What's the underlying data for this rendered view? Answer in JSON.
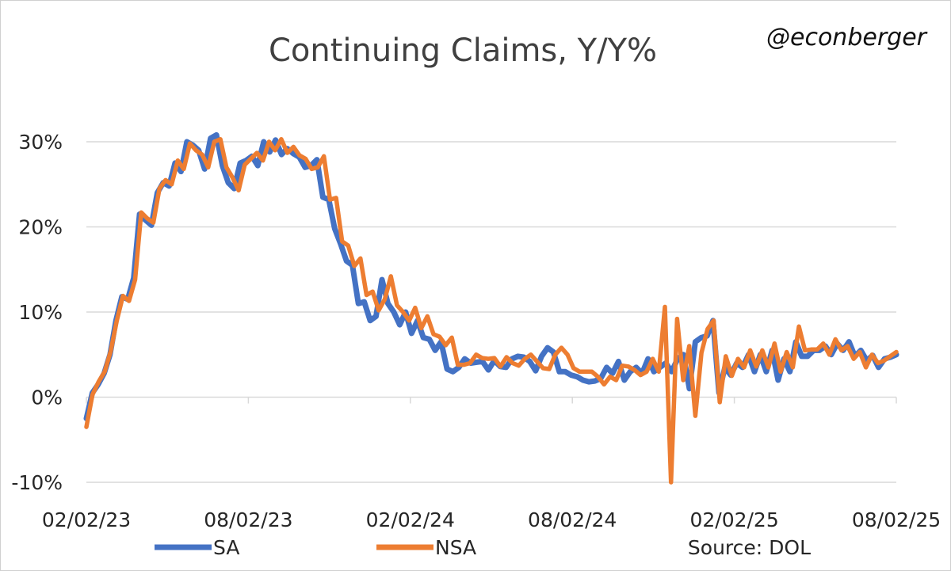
{
  "handle": "@econberger",
  "source": "Source: DOL",
  "chart_data": {
    "type": "line",
    "title": "Continuing Claims, Y/Y%",
    "xlabel": "",
    "ylabel": "",
    "ylim": [
      -10,
      30
    ],
    "yticks": [
      -10,
      0,
      10,
      20,
      30
    ],
    "yticklabels": [
      "-10%",
      "0%",
      "10%",
      "20%",
      "30%"
    ],
    "xticklabels": [
      "02/02/23",
      "08/02/23",
      "02/02/24",
      "08/02/24",
      "02/02/25",
      "08/02/25"
    ],
    "x_range": [
      "2023-02-02",
      "2025-08-02"
    ],
    "grid": true,
    "legend_position": "bottom",
    "colors": {
      "SA": "#4472C4",
      "NSA": "#ED7D31"
    },
    "series": [
      {
        "name": "SA",
        "values": [
          -2.5,
          0.5,
          1.5,
          2.8,
          5.0,
          9.0,
          11.8,
          11.5,
          14.0,
          21.5,
          20.8,
          20.2,
          24.0,
          25.2,
          24.8,
          27.5,
          26.5,
          30.0,
          29.6,
          29.0,
          26.8,
          30.4,
          30.8,
          27.2,
          25.2,
          24.5,
          27.5,
          27.8,
          28.3,
          27.2,
          30.0,
          28.8,
          30.2,
          28.5,
          29.2,
          28.6,
          28.2,
          27.0,
          27.2,
          27.9,
          23.5,
          23.2,
          19.8,
          18.0,
          16.0,
          15.5,
          11.0,
          11.2,
          9.0,
          9.5,
          13.8,
          11.0,
          10.0,
          8.5,
          10.0,
          7.5,
          9.0,
          7.0,
          6.8,
          5.5,
          6.5,
          3.3,
          3.0,
          3.5,
          4.5,
          4.0,
          4.1,
          4.2,
          3.2,
          4.3,
          3.6,
          3.5,
          4.5,
          4.8,
          4.7,
          4.2,
          3.1,
          4.8,
          5.8,
          5.3,
          3.0,
          3.0,
          2.6,
          2.4,
          2.0,
          1.8,
          1.9,
          2.2,
          3.5,
          2.8,
          4.2,
          2.0,
          3.0,
          3.5,
          2.8,
          4.5,
          3.0,
          3.5,
          4.0,
          3.0,
          4.5,
          5.0,
          1.0,
          6.5,
          7.0,
          7.2,
          9.0,
          0.5,
          3.5,
          2.6,
          4.0,
          3.5,
          5.0,
          3.0,
          5.0,
          3.0,
          5.5,
          2.0,
          4.5,
          3.0,
          6.5,
          4.8,
          4.8,
          5.5,
          5.5,
          6.0,
          5.0,
          6.3,
          5.5,
          6.5,
          4.8,
          5.5,
          4.3,
          4.9,
          3.5,
          4.5,
          4.7,
          5.0
        ]
      },
      {
        "name": "NSA",
        "values": [
          -3.5,
          0.3,
          1.8,
          3.0,
          5.4,
          9.0,
          11.9,
          11.3,
          13.8,
          21.7,
          21.0,
          20.5,
          24.5,
          25.5,
          25.0,
          27.8,
          26.8,
          29.8,
          29.0,
          28.5,
          27.0,
          30.0,
          30.3,
          27.0,
          25.8,
          24.3,
          27.3,
          28.0,
          28.7,
          27.8,
          30.0,
          29.0,
          30.3,
          28.7,
          29.4,
          28.4,
          28.0,
          26.8,
          27.0,
          28.3,
          23.2,
          23.4,
          18.3,
          17.8,
          15.4,
          16.3,
          12.0,
          12.4,
          10.2,
          11.5,
          14.2,
          10.8,
          10.0,
          9.0,
          10.5,
          8.1,
          9.5,
          7.4,
          7.1,
          6.1,
          7.0,
          3.8,
          3.8,
          4.0,
          5.0,
          4.6,
          4.5,
          4.6,
          3.6,
          4.7,
          4.0,
          3.7,
          4.5,
          5.0,
          4.2,
          3.4,
          3.3,
          5.0,
          5.8,
          5.0,
          3.4,
          3.0,
          3.0,
          3.0,
          2.4,
          1.5,
          2.4,
          2.0,
          3.7,
          3.6,
          3.2,
          2.6,
          3.0,
          4.5,
          3.0,
          10.6,
          -10.0,
          9.2,
          2.0,
          6.0,
          -2.2,
          5.2,
          8.0,
          9.0,
          -0.6,
          4.8,
          2.5,
          4.5,
          3.5,
          5.5,
          3.6,
          5.5,
          3.5,
          6.3,
          3.0,
          5.3,
          3.5,
          8.3,
          5.5,
          5.6,
          5.6,
          6.3,
          5.0,
          6.8,
          5.5,
          6.0,
          4.5,
          5.3,
          3.5,
          5.0,
          4.0,
          4.3,
          4.8,
          5.3
        ]
      }
    ]
  }
}
